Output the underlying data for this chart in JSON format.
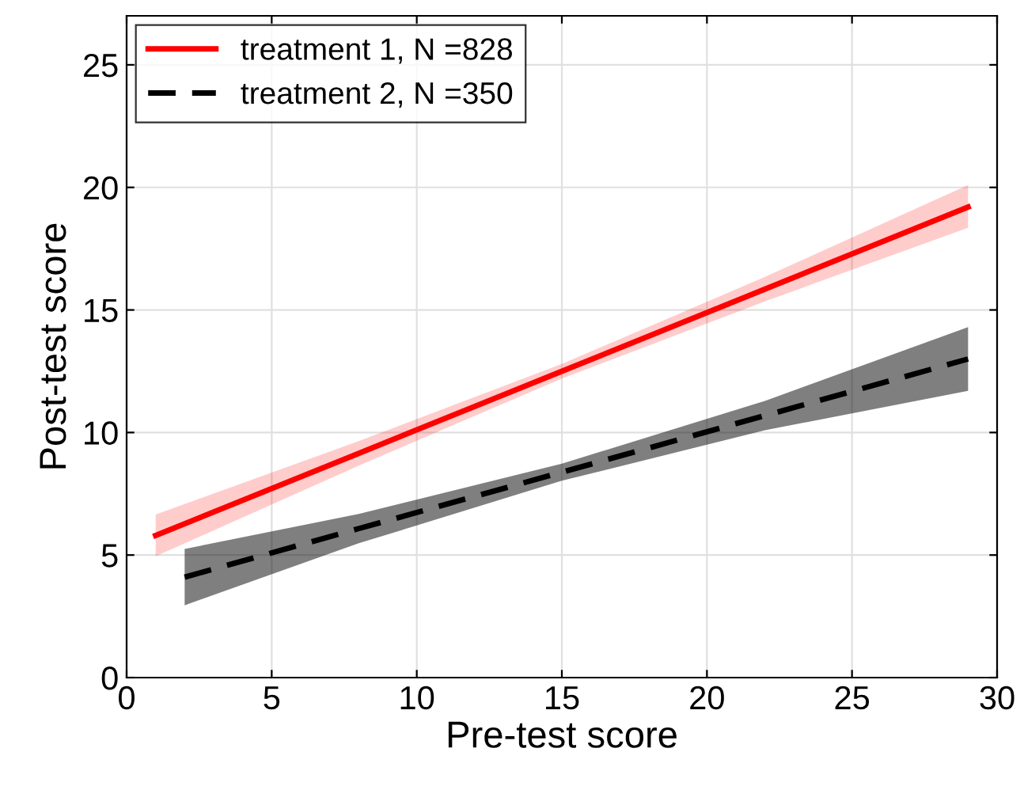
{
  "chart_data": {
    "type": "line",
    "xlabel": "Pre-test score",
    "ylabel": "Post-test score",
    "xlim": [
      0,
      30
    ],
    "ylim": [
      0,
      27
    ],
    "xticks": [
      0,
      5,
      10,
      15,
      20,
      25,
      30
    ],
    "yticks": [
      0,
      5,
      10,
      15,
      20,
      25
    ],
    "grid": true,
    "legend": "top left",
    "series": [
      {
        "name": "treatment 1, N =828",
        "color": "#ff0000",
        "line_style": "solid",
        "x": [
          1,
          8,
          15,
          22,
          29
        ],
        "values": [
          5.8,
          9.15,
          12.5,
          15.85,
          19.2
        ],
        "lower": [
          4.95,
          8.65,
          12.2,
          15.35,
          18.35
        ],
        "upper": [
          6.65,
          9.65,
          12.8,
          16.35,
          20.1
        ]
      },
      {
        "name": "treatment 2, N =350",
        "color": "#000000",
        "line_style": "dashed",
        "x": [
          2,
          8,
          15,
          22,
          29
        ],
        "values": [
          4.1,
          6.08,
          8.38,
          10.69,
          13.0
        ],
        "lower": [
          2.95,
          5.48,
          8.03,
          10.09,
          11.7
        ],
        "upper": [
          5.25,
          6.68,
          8.73,
          11.29,
          14.3
        ]
      }
    ]
  }
}
